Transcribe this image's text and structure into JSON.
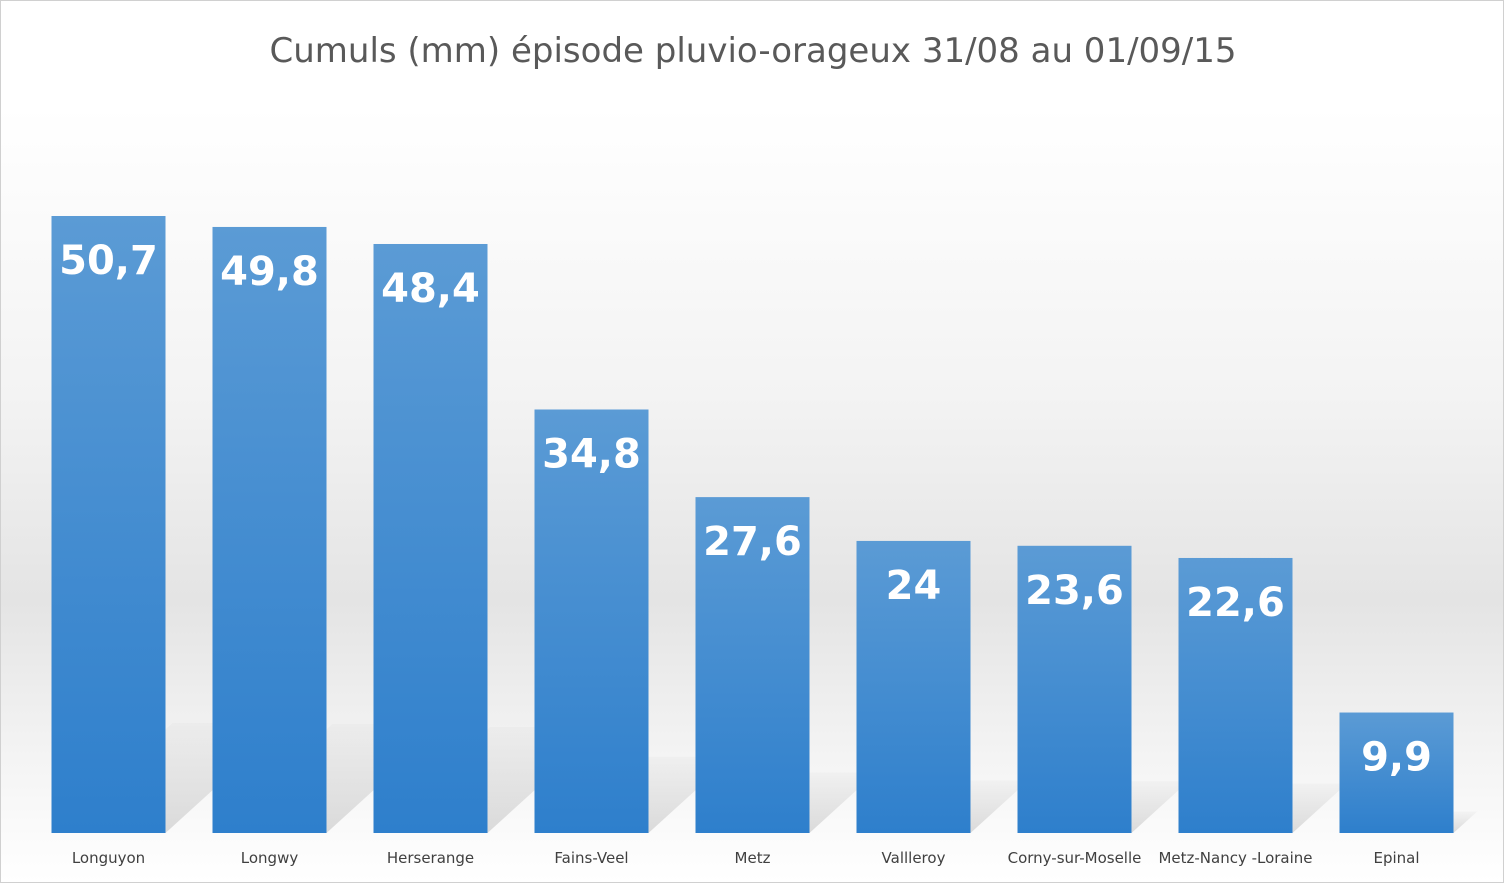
{
  "chart_data": {
    "type": "bar",
    "title": "Cumuls (mm) épisode pluvio-orageux 31/08 au 01/09/15",
    "xlabel": "",
    "ylabel": "",
    "categories": [
      "Longuyon",
      "Longwy",
      "Herserange",
      "Fains-Veel",
      "Metz",
      "Vallleroy",
      "Corny-sur-Moselle",
      "Metz-Nancy -Loraine",
      "Epinal"
    ],
    "values": [
      50.7,
      49.8,
      48.4,
      34.8,
      27.6,
      24,
      23.6,
      22.6,
      9.9
    ],
    "data_labels": [
      "50,7",
      "49,8",
      "48,4",
      "34,8",
      "27,6",
      "24",
      "23,6",
      "22,6",
      "9,9"
    ],
    "ylim": [
      0,
      50.7
    ],
    "grid": false,
    "legend": "none",
    "colors": {
      "bar_top": "#5b9bd5",
      "bar_bottom": "#2e7fcc",
      "label": "#ffffff",
      "title": "#595959",
      "ticks": "#404040"
    }
  }
}
